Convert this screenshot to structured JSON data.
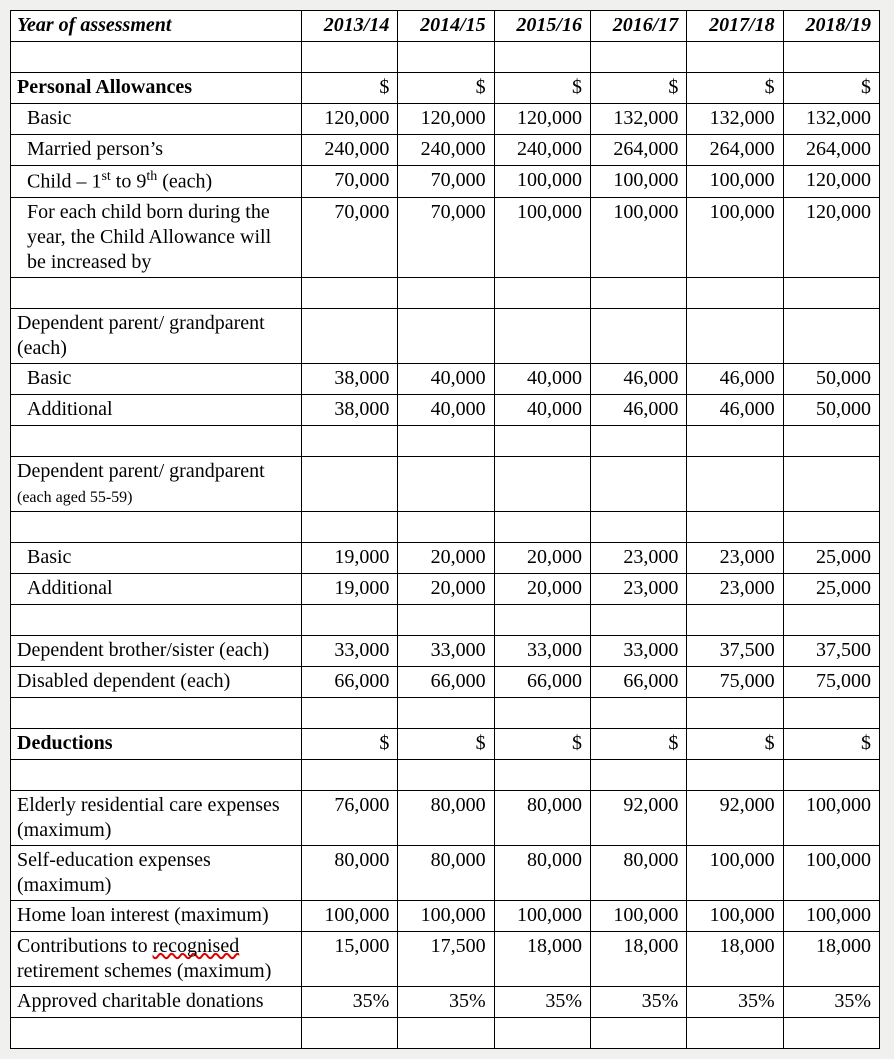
{
  "header": {
    "label": "Year of assessment",
    "years": [
      "2013/14",
      "2014/15",
      "2015/16",
      "2016/17",
      "2017/18",
      "2018/19"
    ]
  },
  "sections": {
    "allowances": {
      "title": "Personal Allowances",
      "unit": "$",
      "rows": {
        "basic": {
          "label": "Basic",
          "vals": [
            "120,000",
            "120,000",
            "120,000",
            "132,000",
            "132,000",
            "132,000"
          ]
        },
        "married": {
          "label": "Married person’s",
          "vals": [
            "240,000",
            "240,000",
            "240,000",
            "264,000",
            "264,000",
            "264,000"
          ]
        },
        "child_label_pre": "Child – 1",
        "child_label_mid": " to 9",
        "child_label_post": " (each)",
        "child": {
          "vals": [
            "70,000",
            "70,000",
            "100,000",
            "100,000",
            "100,000",
            "120,000"
          ]
        },
        "childborn": {
          "label": "For each child born during the year, the Child Allowance will be increased by",
          "vals": [
            "70,000",
            "70,000",
            "100,000",
            "100,000",
            "100,000",
            "120,000"
          ]
        },
        "dep_gp_h": "Dependent parent/ grandparent (each)",
        "dep_gp_basic": {
          "label": "Basic",
          "vals": [
            "38,000",
            "40,000",
            "40,000",
            "46,000",
            "46,000",
            "50,000"
          ]
        },
        "dep_gp_add": {
          "label": "Additional",
          "vals": [
            "38,000",
            "40,000",
            "40,000",
            "46,000",
            "46,000",
            "50,000"
          ]
        },
        "dep_gp55_pre": "Dependent parent/ grandparent ",
        "dep_gp55_small": "(each aged 55-59)",
        "dep_gp55_basic": {
          "label": "Basic",
          "vals": [
            "19,000",
            "20,000",
            "20,000",
            "23,000",
            "23,000",
            "25,000"
          ]
        },
        "dep_gp55_add": {
          "label": "Additional",
          "vals": [
            "19,000",
            "20,000",
            "20,000",
            "23,000",
            "23,000",
            "25,000"
          ]
        },
        "dep_bro": {
          "label": "Dependent brother/sister (each)",
          "vals": [
            "33,000",
            "33,000",
            "33,000",
            "33,000",
            "37,500",
            "37,500"
          ]
        },
        "disabled": {
          "label": "Disabled dependent (each)",
          "vals": [
            "66,000",
            "66,000",
            "66,000",
            "66,000",
            "75,000",
            "75,000"
          ]
        }
      }
    },
    "deductions": {
      "title": "Deductions",
      "unit": "$",
      "rows": {
        "elderly": {
          "label": "Elderly residential care expenses (maximum)",
          "vals": [
            "76,000",
            "80,000",
            "80,000",
            "92,000",
            "92,000",
            "100,000"
          ]
        },
        "selfed": {
          "label": "Self-education expenses (maximum)",
          "vals": [
            "80,000",
            "80,000",
            "80,000",
            "80,000",
            "100,000",
            "100,000"
          ]
        },
        "homeloan": {
          "label": "Home loan interest (maximum)",
          "vals": [
            "100,000",
            "100,000",
            "100,000",
            "100,000",
            "100,000",
            "100,000"
          ]
        },
        "retire_pre": "Contributions to ",
        "retire_err": "recognised",
        "retire_post": " retirement schemes (maximum)",
        "retire": {
          "vals": [
            "15,000",
            "17,500",
            "18,000",
            "18,000",
            "18,000",
            "18,000"
          ]
        },
        "donate": {
          "label": "Approved charitable donations",
          "vals": [
            "35%",
            "35%",
            "35%",
            "35%",
            "35%",
            "35%"
          ]
        }
      }
    }
  }
}
